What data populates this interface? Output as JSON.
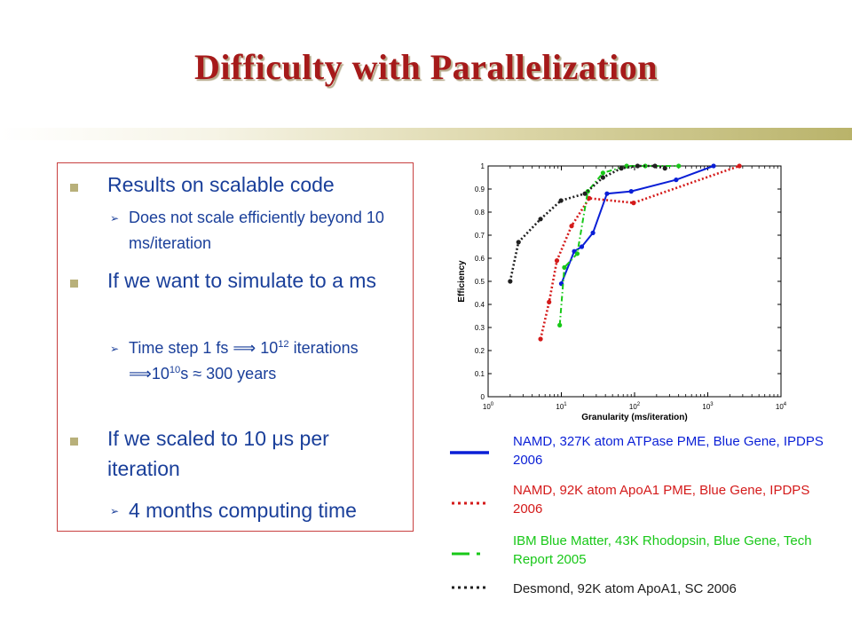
{
  "slide": {
    "title": "Difficulty with Parallelization"
  },
  "bullets": [
    {
      "text": "Results on scalable code"
    },
    {
      "text": "Does not scale efficiently beyond 10 ms/iteration"
    },
    {
      "text": "If we want to simulate to a ms"
    },
    {
      "text_parts": [
        "Time step 1 fs ",
        "⟹",
        " 10",
        "12",
        " iterations ",
        "⟹",
        "10",
        "10",
        "s ≈ 300 years"
      ]
    },
    {
      "text_parts": [
        "If we scaled to 10 ",
        "μ",
        "s per iteration"
      ]
    },
    {
      "text": "4 months computing time"
    }
  ],
  "colors": {
    "title": "#a61a1a",
    "bullet_text": "#1a3f9a",
    "box_border": "#c84040",
    "namd_327k": "#0a1fd6",
    "namd_92k": "#d41a1a",
    "blue_matter": "#18c818",
    "desmond": "#202020"
  },
  "chart_data": {
    "type": "line",
    "xlabel": "Granularity (ms/iteration)",
    "ylabel": "Efficiency",
    "x_scale": "log",
    "xlim": [
      1,
      10000
    ],
    "ylim": [
      0,
      1
    ],
    "x_ticks": [
      1,
      10,
      100,
      1000,
      10000
    ],
    "x_tick_labels": [
      [
        "10",
        "0"
      ],
      [
        "10",
        "1"
      ],
      [
        "10",
        "2"
      ],
      [
        "10",
        "3"
      ],
      [
        "10",
        "4"
      ]
    ],
    "y_ticks": [
      0,
      0.1,
      0.2,
      0.3,
      0.4,
      0.5,
      0.6,
      0.7,
      0.8,
      0.9,
      1
    ],
    "y_tick_labels": [
      "0",
      "0.1",
      "0.2",
      "0.3",
      "0.4",
      "0.5",
      "0.6",
      "0.7",
      "0.8",
      "0.9",
      "1"
    ],
    "grid": false,
    "series": [
      {
        "name": "NAMD, 327K atom ATPase PME, Blue Gene, IPDPS 2006",
        "color": "#0a1fd6",
        "style": "solid",
        "marker": "circle",
        "points": [
          [
            10,
            0.49
          ],
          [
            15,
            0.63
          ],
          [
            19,
            0.65
          ],
          [
            27,
            0.71
          ],
          [
            42,
            0.88
          ],
          [
            90,
            0.89
          ],
          [
            370,
            0.94
          ],
          [
            1200,
            1.0
          ]
        ]
      },
      {
        "name": "NAMD, 92K atom ApoA1 PME, Blue Gene, IPDPS 2006",
        "color": "#d41a1a",
        "style": "dotted",
        "marker": "circle",
        "points": [
          [
            5.2,
            0.25
          ],
          [
            6.8,
            0.41
          ],
          [
            8.7,
            0.59
          ],
          [
            13.8,
            0.74
          ],
          [
            24,
            0.86
          ],
          [
            97,
            0.84
          ],
          [
            2700,
            1.0
          ]
        ]
      },
      {
        "name": "IBM Blue Matter, 43K Rhodopsin, Blue Gene, Tech Report 2005",
        "color": "#18c818",
        "style": "dashdot",
        "marker": "circle",
        "points": [
          [
            9.5,
            0.31
          ],
          [
            11,
            0.56
          ],
          [
            16.5,
            0.62
          ],
          [
            23,
            0.89
          ],
          [
            37,
            0.97
          ],
          [
            78,
            1.0
          ],
          [
            140,
            1.0
          ],
          [
            400,
            1.0
          ]
        ]
      },
      {
        "name": "Desmond, 92K atom ApoA1, SC 2006",
        "color": "#202020",
        "style": "dotted",
        "marker": "circle",
        "points": [
          [
            2,
            0.5
          ],
          [
            2.6,
            0.67
          ],
          [
            5.2,
            0.77
          ],
          [
            9.9,
            0.85
          ],
          [
            21,
            0.88
          ],
          [
            37,
            0.95
          ],
          [
            66,
            0.99
          ],
          [
            110,
            1.0
          ],
          [
            190,
            1.0
          ],
          [
            260,
            0.99
          ]
        ]
      }
    ],
    "legend_position": "bottom"
  }
}
